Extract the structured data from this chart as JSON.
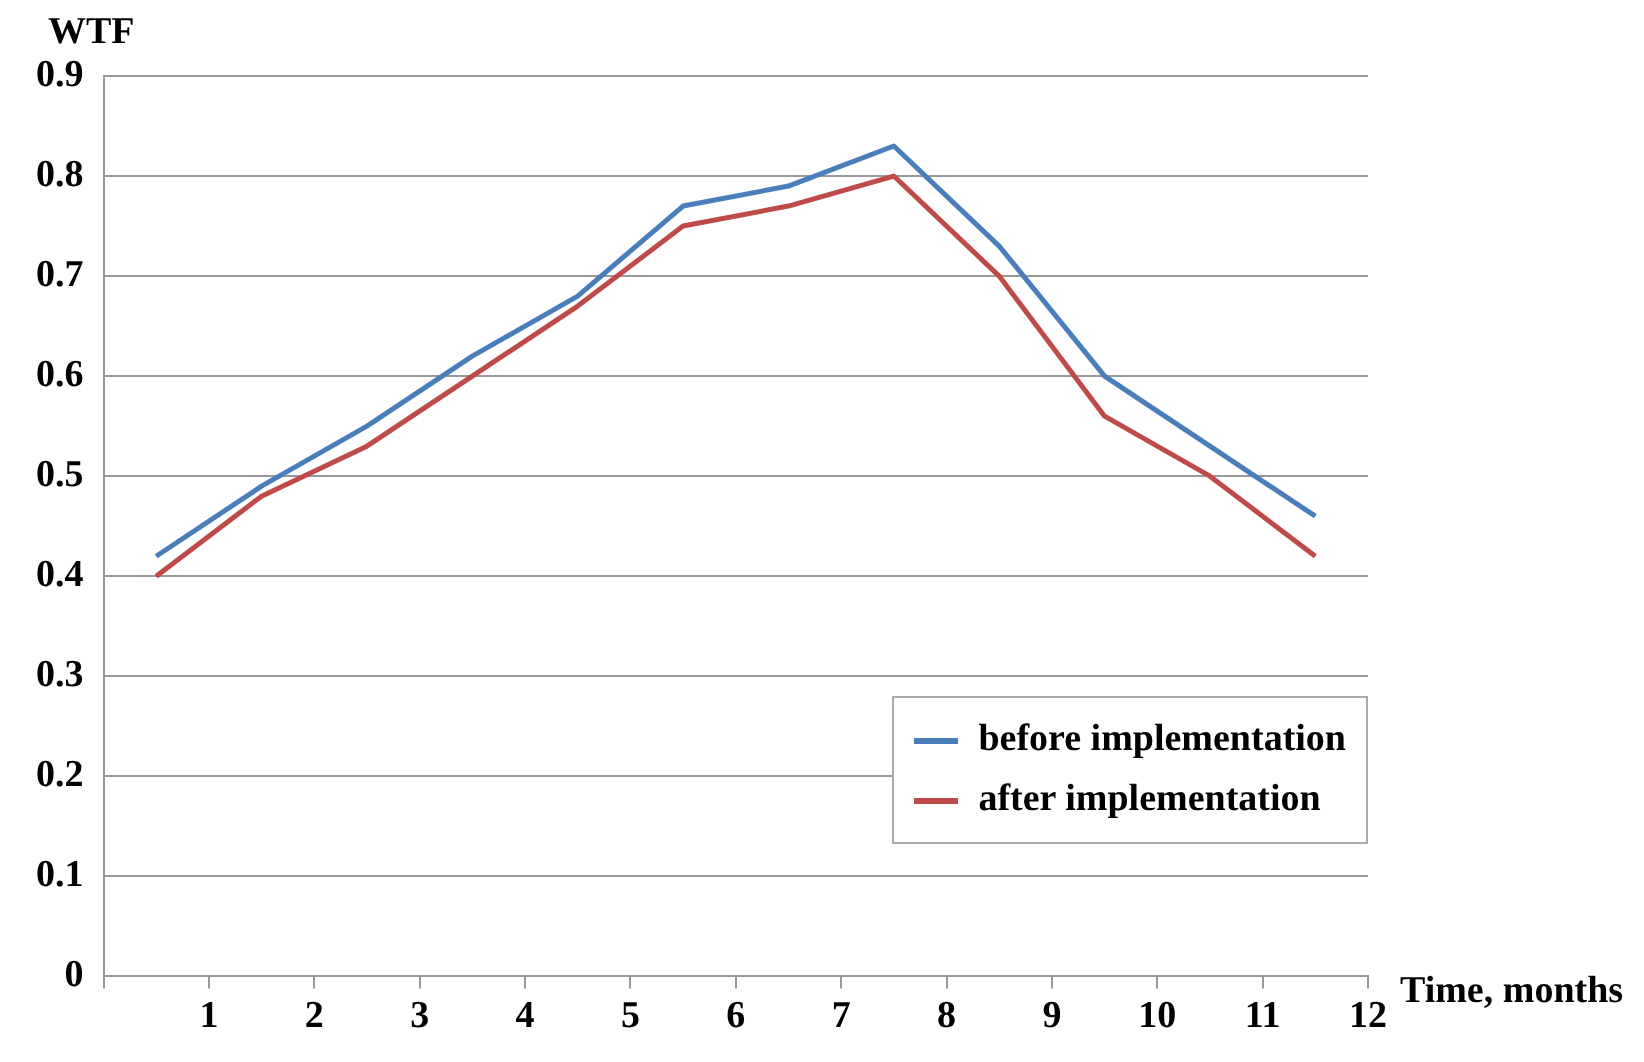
{
  "chart_data": {
    "type": "line",
    "xlabel": "Time, months",
    "ylabel": "WTF",
    "x": [
      0.5,
      1.5,
      2.5,
      3.5,
      4.5,
      5.5,
      6.5,
      7.5,
      8.5,
      9.5,
      10.5,
      11.5
    ],
    "xlim": [
      0,
      12
    ],
    "xticks": [
      {
        "value": 0,
        "label": null
      },
      1,
      2,
      3,
      4,
      5,
      6,
      7,
      8,
      9,
      10,
      11,
      12
    ],
    "ylim": [
      0,
      0.9
    ],
    "yticks": [
      0,
      0.1,
      0.2,
      0.3,
      0.4,
      0.5,
      0.6,
      0.7,
      0.8,
      0.9
    ],
    "series": [
      {
        "name": "before implementation",
        "color": "#4a7ebb",
        "values": [
          0.42,
          0.49,
          0.55,
          0.62,
          0.68,
          0.77,
          0.79,
          0.83,
          0.73,
          0.6,
          0.53,
          0.46
        ]
      },
      {
        "name": "after implementation",
        "color": "#be4b48",
        "values": [
          0.4,
          0.48,
          0.53,
          0.6,
          0.67,
          0.75,
          0.77,
          0.8,
          0.7,
          0.56,
          0.5,
          0.42
        ]
      }
    ],
    "grid": "y",
    "legend": "bottom right",
    "marker": "none",
    "line_style": "solid"
  }
}
